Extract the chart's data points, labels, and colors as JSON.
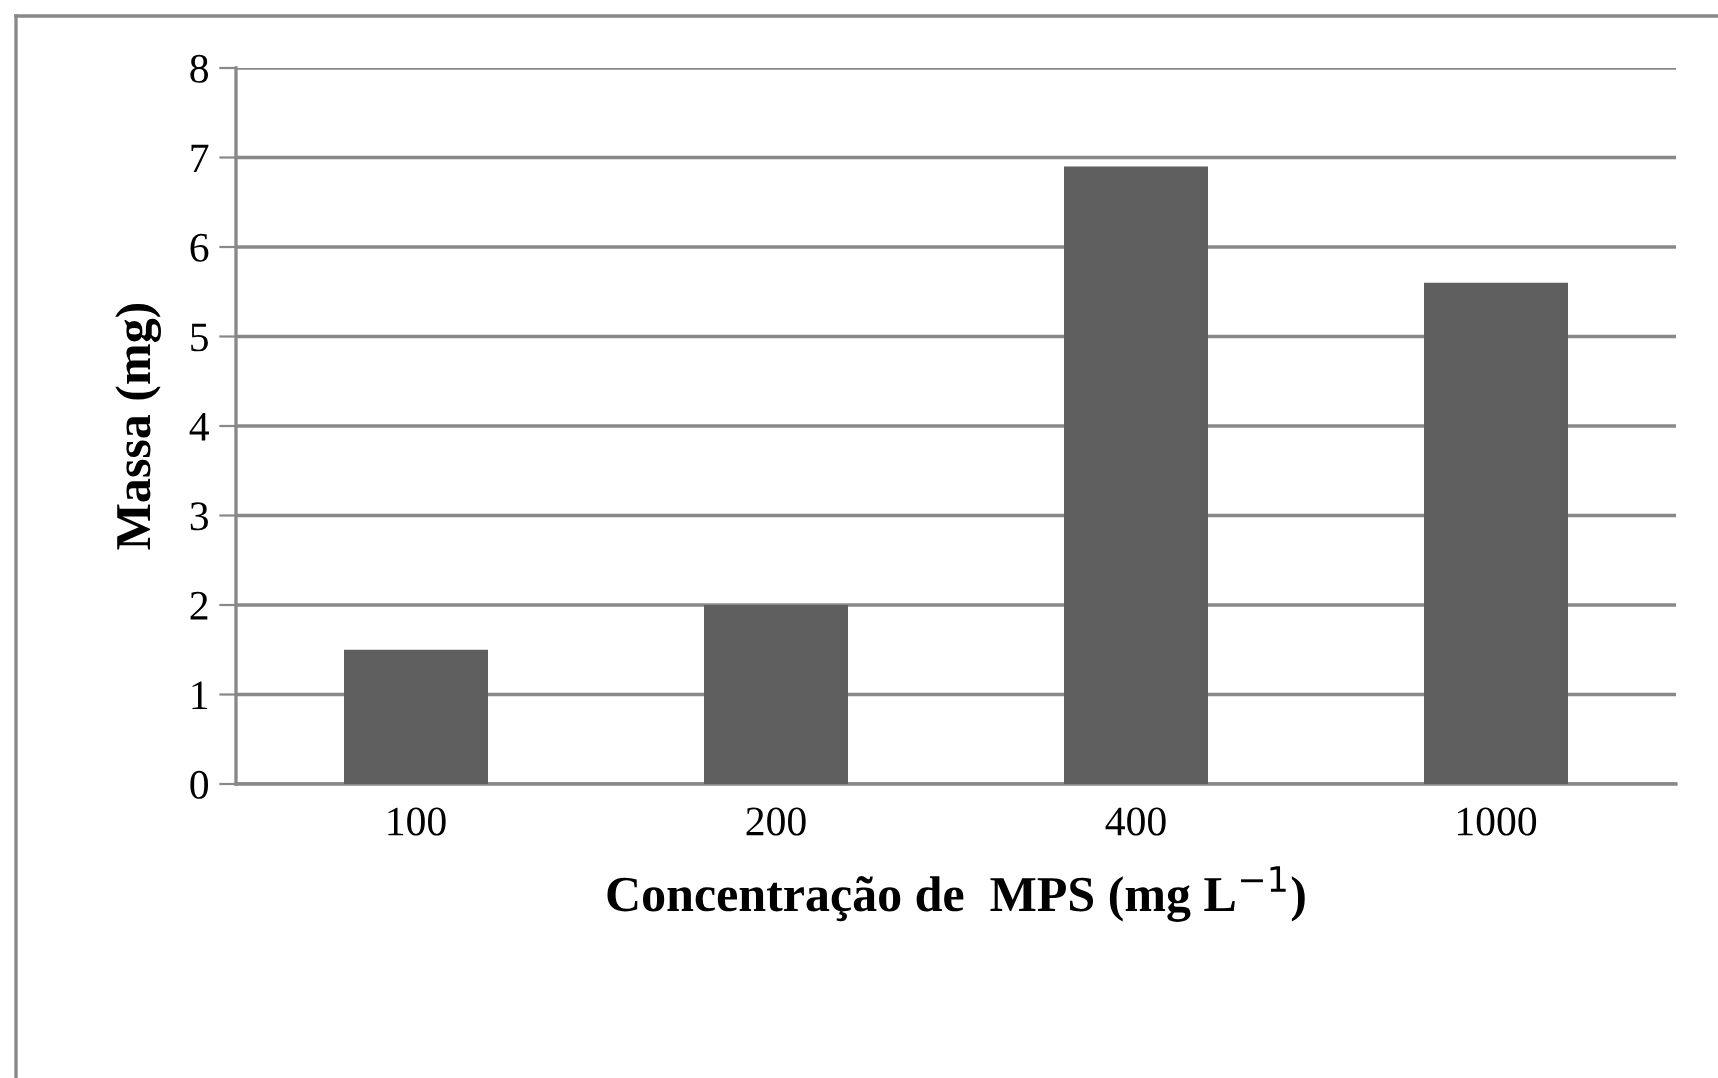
{
  "chart_data": {
    "type": "bar",
    "xlabel": "Concentração de  MPS (mg L$^{−1}$)",
    "ylabel": "Massa (mg)",
    "categories": [
      "100",
      "200",
      "400",
      "1000"
    ],
    "values": [
      1.5,
      2.0,
      6.9,
      5.6
    ],
    "color": "#5f5f5f",
    "ylim": [
      0,
      8
    ],
    "yticks": [
      0,
      1,
      2,
      3,
      4,
      5,
      6,
      7,
      8
    ],
    "grid": "y",
    "legend": false
  }
}
